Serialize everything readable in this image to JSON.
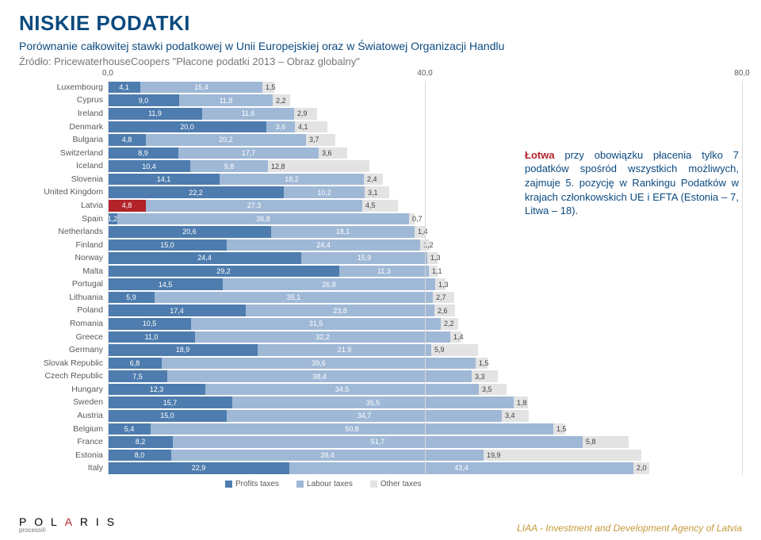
{
  "title": "NISKIE PODATKI",
  "title_color": "#0b4a7f",
  "subtitle": "Porównanie całkowitej stawki podatkowej w Unii Europejskiej oraz w Światowej Organizacji Handlu",
  "subtitle_color": "#0b4a7f",
  "source": "Źródło: PricewaterhouseCoopers \"Płacone podatki 2013 – Obraz globalny\"",
  "source_color": "#777777",
  "chart": {
    "xmin": 0.0,
    "xmax": 80.0,
    "ticks": [
      0.0,
      40.0,
      80.0
    ],
    "tick_labels": [
      "0,0",
      "40,0",
      "80,0"
    ],
    "colors": {
      "profits": "#4e7cae",
      "labour": "#9fb8d6",
      "other": "#e3e3e3",
      "latvia_profits": "#b2232a"
    },
    "legend": [
      {
        "label": "Profits taxes",
        "color": "#4e7cae"
      },
      {
        "label": "Labour taxes",
        "color": "#9fb8d6"
      },
      {
        "label": "Other taxes",
        "color": "#e3e3e3"
      }
    ],
    "rows": [
      {
        "country": "Luxembourg",
        "profits": 4.1,
        "labour": 15.4,
        "other": 1.5
      },
      {
        "country": "Cyprus",
        "profits": 9.0,
        "labour": 11.8,
        "other": 2.2
      },
      {
        "country": "Ireland",
        "profits": 11.9,
        "labour": 11.6,
        "other": 2.9
      },
      {
        "country": "Denmark",
        "profits": 20.0,
        "labour": 3.6,
        "other": 4.1
      },
      {
        "country": "Bulgaria",
        "profits": 4.8,
        "labour": 20.2,
        "other": 3.7
      },
      {
        "country": "Switzerland",
        "profits": 8.9,
        "labour": 17.7,
        "other": 3.6
      },
      {
        "country": "Iceland",
        "profits": 10.4,
        "labour": 9.8,
        "other": 12.8
      },
      {
        "country": "Slovenia",
        "profits": 14.1,
        "labour": 18.2,
        "other": 2.4
      },
      {
        "country": "United Kingdom",
        "profits": 22.2,
        "labour": 10.2,
        "other": 3.1
      },
      {
        "country": "Latvia",
        "profits": 4.8,
        "labour": 27.3,
        "other": 4.5,
        "highlight": true
      },
      {
        "country": "Spain",
        "profits": 1.2,
        "labour": 36.8,
        "other": 0.7
      },
      {
        "country": "Netherlands",
        "profits": 20.6,
        "labour": 18.1,
        "other": 1.4
      },
      {
        "country": "Finland",
        "profits": 15.0,
        "labour": 24.4,
        "other": 1.2
      },
      {
        "country": "Norway",
        "profits": 24.4,
        "labour": 15.9,
        "other": 1.3
      },
      {
        "country": "Malta",
        "profits": 29.2,
        "labour": 11.3,
        "other": 1.1
      },
      {
        "country": "Portugal",
        "profits": 14.5,
        "labour": 26.8,
        "other": 1.3
      },
      {
        "country": "Lithuania",
        "profits": 5.9,
        "labour": 35.1,
        "other": 2.7
      },
      {
        "country": "Poland",
        "profits": 17.4,
        "labour": 23.8,
        "other": 2.6
      },
      {
        "country": "Romania",
        "profits": 10.5,
        "labour": 31.5,
        "other": 2.2
      },
      {
        "country": "Greece",
        "profits": 11.0,
        "labour": 32.2,
        "other": 1.4
      },
      {
        "country": "Germany",
        "profits": 18.9,
        "labour": 21.9,
        "other": 5.9
      },
      {
        "country": "Slovak Republic",
        "profits": 6.8,
        "labour": 39.6,
        "other": 1.5
      },
      {
        "country": "Czech Republic",
        "profits": 7.5,
        "labour": 38.4,
        "other": 3.3
      },
      {
        "country": "Hungary",
        "profits": 12.3,
        "labour": 34.5,
        "other": 3.5
      },
      {
        "country": "Sweden",
        "profits": 15.7,
        "labour": 35.5,
        "other": 1.8
      },
      {
        "country": "Austria",
        "profits": 15.0,
        "labour": 34.7,
        "other": 3.4
      },
      {
        "country": "Belgium",
        "profits": 5.4,
        "labour": 50.8,
        "other": 1.5
      },
      {
        "country": "France",
        "profits": 8.2,
        "labour": 51.7,
        "other": 5.8
      },
      {
        "country": "Estonia",
        "profits": 8.0,
        "labour": 39.4,
        "other": 19.9
      },
      {
        "country": "Italy",
        "profits": 22.9,
        "labour": 43.4,
        "other": 2.0
      }
    ]
  },
  "callout": {
    "line1_a": "Łotwa",
    "line1_b": " przy obowiązku płacenia tylko 7 podatków spośród wszystkich możliwych, zajmuje 5. pozycję w Rankingu Podatków w krajach członkowskich UE i EFTA (Estonia – 7, Litwa – 18).",
    "color": "#0b4a7f",
    "highlight_color": "#b2232a"
  },
  "footer": {
    "brand_text": "POLARIS",
    "brand_sub": "process®",
    "liaa": "LIAA - Investment and Development Agency of Latvia"
  }
}
